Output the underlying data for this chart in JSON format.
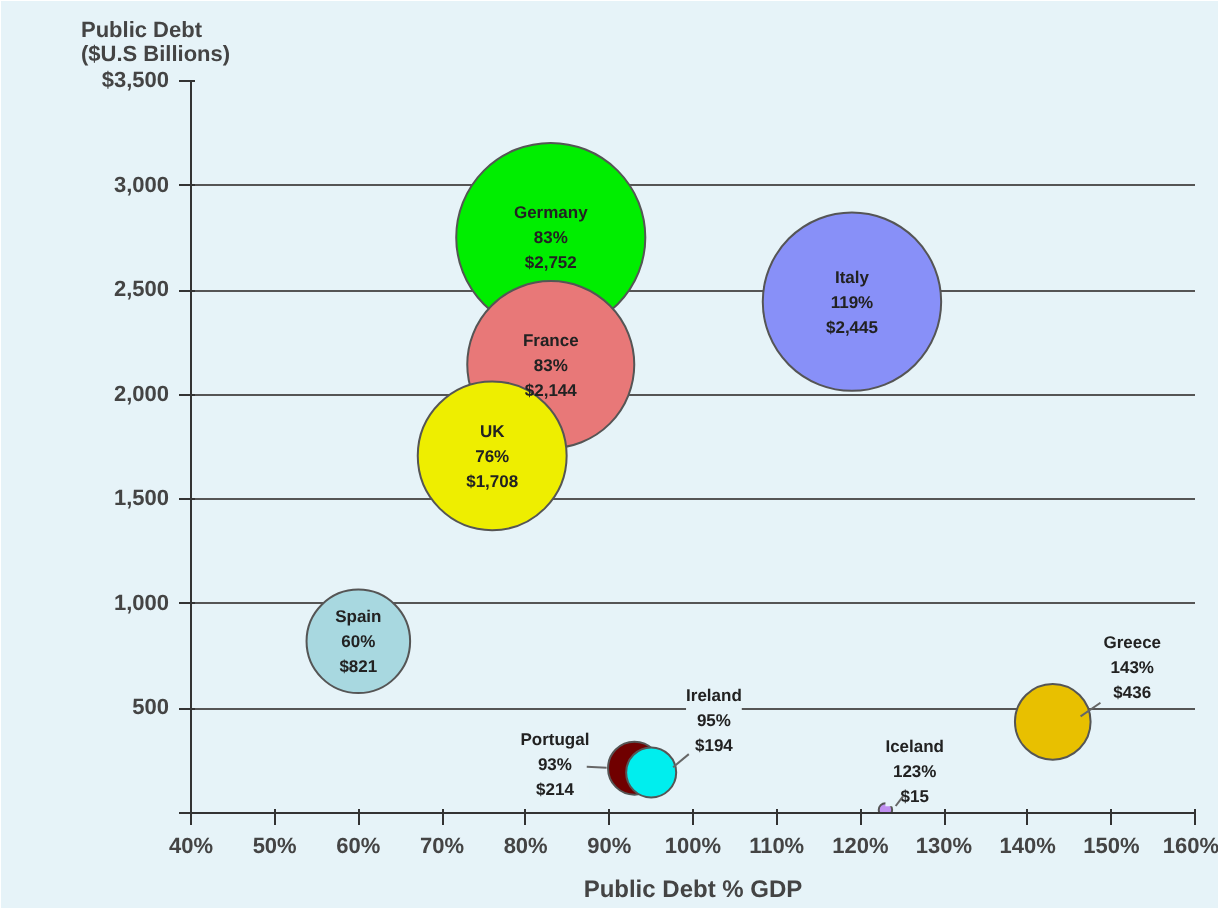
{
  "chart_data": {
    "type": "bubble",
    "xlabel": "Public Debt % GDP",
    "ylabel": "Public Debt\n($U.S Billions)",
    "xlim": [
      40,
      160
    ],
    "xticks": [
      {
        "value": 40,
        "label": "40%"
      },
      {
        "value": 50,
        "label": "50%"
      },
      {
        "value": 60,
        "label": "60%"
      },
      {
        "value": 70,
        "label": "70%"
      },
      {
        "value": 80,
        "label": "80%"
      },
      {
        "value": 90,
        "label": "90%"
      },
      {
        "value": 100,
        "label": "100%"
      },
      {
        "value": 110,
        "label": "110%"
      },
      {
        "value": 120,
        "label": "120%"
      },
      {
        "value": 130,
        "label": "130%"
      },
      {
        "value": 140,
        "label": "140%"
      },
      {
        "value": 150,
        "label": "150%"
      },
      {
        "value": 160,
        "label": "160%"
      }
    ],
    "ylim": [
      0,
      3500
    ],
    "yticks": [
      {
        "value": 0,
        "label": null
      },
      {
        "value": 500,
        "label": "500"
      },
      {
        "value": 1000,
        "label": "1,000"
      },
      {
        "value": 1500,
        "label": "1,500"
      },
      {
        "value": 2000,
        "label": "2,000"
      },
      {
        "value": 2500,
        "label": "2,500"
      },
      {
        "value": 3000,
        "label": "3,000"
      },
      {
        "value": 3500,
        "label": "$3,500"
      }
    ],
    "grid": "y",
    "series": [
      {
        "name": "Germany",
        "color": "#00ee00",
        "x": [
          83
        ],
        "values": [
          2752
        ],
        "sizes": [
          1
        ],
        "value_labels": [
          "83%\n$2,752"
        ]
      },
      {
        "name": "France",
        "color": "#e87878",
        "x": [
          83
        ],
        "values": [
          2144
        ],
        "sizes": [
          0.78
        ],
        "value_labels": [
          "83%\n$2,144"
        ]
      },
      {
        "name": "Italy",
        "color": "#8890f8",
        "x": [
          119
        ],
        "values": [
          2445
        ],
        "sizes": [
          0.89
        ],
        "value_labels": [
          "119%\n$2,445"
        ]
      },
      {
        "name": "UK",
        "color": "#eeee00",
        "x": [
          76
        ],
        "values": [
          1708
        ],
        "sizes": [
          0.62
        ],
        "value_labels": [
          "76%\n$1,708"
        ]
      },
      {
        "name": "Spain",
        "color": "#a8d8e0",
        "x": [
          60
        ],
        "values": [
          821
        ],
        "sizes": [
          0.3
        ],
        "value_labels": [
          "60%\n$821"
        ]
      },
      {
        "name": "Greece",
        "color": "#e8c000",
        "x": [
          143
        ],
        "values": [
          436
        ],
        "sizes": [
          0.16
        ],
        "value_labels": [
          "143%\n$436"
        ]
      },
      {
        "name": "Portugal",
        "color": "#700000",
        "x": [
          93
        ],
        "values": [
          214
        ],
        "sizes": [
          0.078
        ],
        "value_labels": [
          "93%\n$214"
        ]
      },
      {
        "name": "Ireland",
        "color": "#00eeee",
        "x": [
          95
        ],
        "values": [
          194
        ],
        "sizes": [
          0.07
        ],
        "value_labels": [
          "95%\n$194"
        ]
      },
      {
        "name": "Iceland",
        "color": "#c090f0",
        "x": [
          123
        ],
        "values": [
          15
        ],
        "sizes": [
          0.005
        ],
        "value_labels": [
          "123%\n$15"
        ]
      }
    ]
  }
}
